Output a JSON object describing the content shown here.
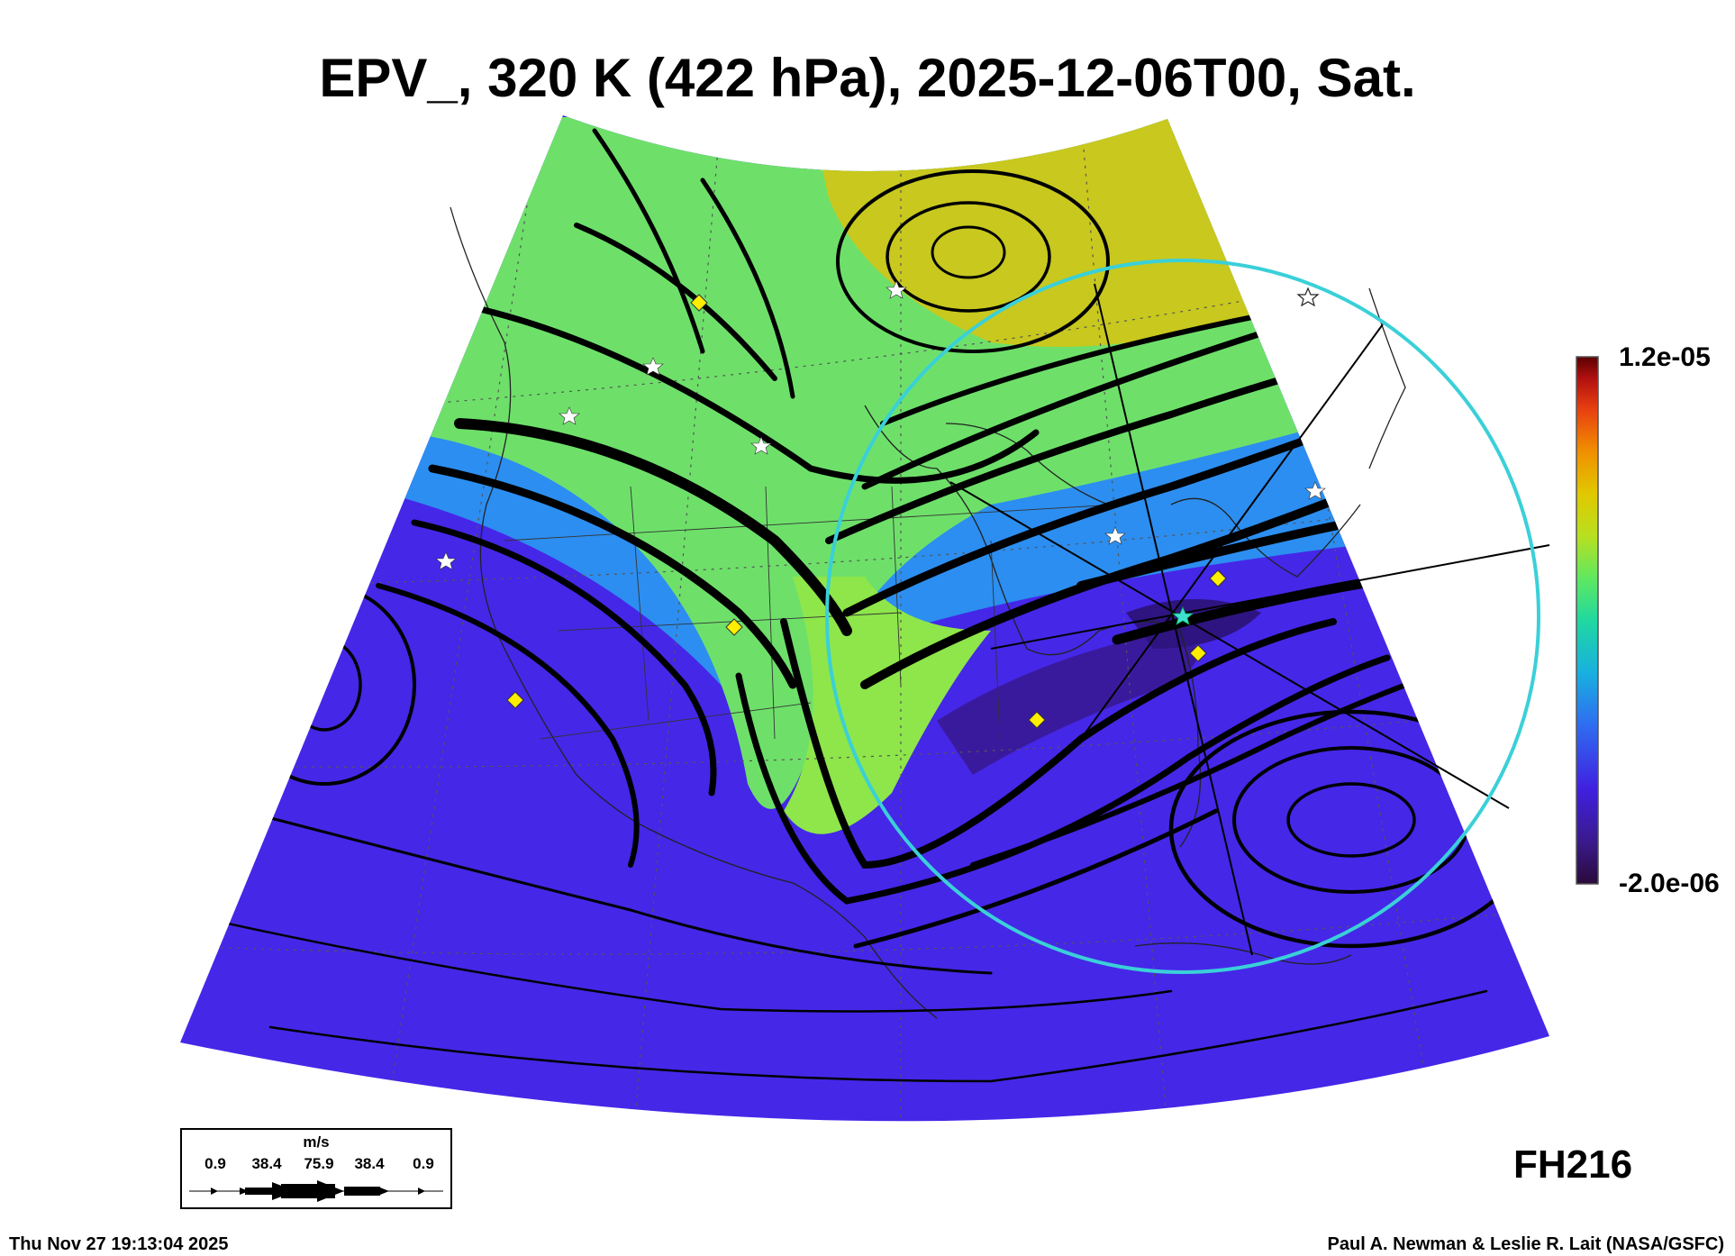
{
  "title": "EPV_, 320 K (422 hPa), 2025-12-06T00, Sat.",
  "colorbar": {
    "max_label": "1.2e-05",
    "min_label": "-2.0e-06",
    "colors": [
      "#2a0a3a",
      "#3a1a8c",
      "#4020e0",
      "#2f6cf0",
      "#18b0e0",
      "#20d8a0",
      "#60e860",
      "#b8e020",
      "#e0c800",
      "#f09000",
      "#e84010",
      "#b01010",
      "#5a0000"
    ]
  },
  "field_colors": {
    "low_pv": "#4527e8",
    "mid_pv": "#2c8ef0",
    "high_pv_green": "#6ee06a",
    "high_pv_yellow": "#c8c81e"
  },
  "forecast_hour": "FH216",
  "legend": {
    "unit": "m/s",
    "values": [
      "0.9",
      "38.4",
      "75.9",
      "38.4",
      "0.9"
    ]
  },
  "timestamp": "Thu Nov 27 19:13:04 2025",
  "credit": "Paul A. Newman & Leslie R. Lait (NASA/GSFC)",
  "markers": {
    "star_color": "#ffffff",
    "diamond_color": "#ffee00",
    "center_color": "#40e0d0",
    "ring_color": "#3ad0d8"
  }
}
